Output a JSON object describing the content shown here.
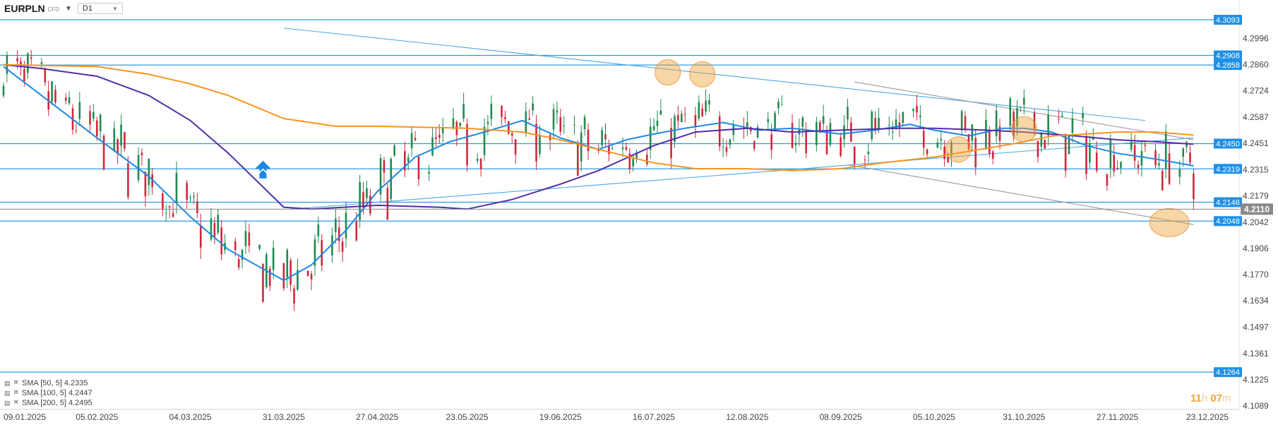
{
  "header": {
    "symbol": "EURPLN",
    "symbol_sub": "CFD",
    "timeframe": "D1"
  },
  "countdown": {
    "hours": "11",
    "hours_unit": "h",
    "minutes": "07",
    "minutes_unit": "m"
  },
  "indicators": [
    {
      "label": "SMA [50, 5] 4.2335",
      "color": "#1e88e5"
    },
    {
      "label": "SMA [100, 5] 4.2447",
      "color": "#512da8"
    },
    {
      "label": "SMA [200, 5] 4.2495",
      "color": "#f7941d"
    }
  ],
  "chart_data": {
    "type": "candlestick",
    "symbol": "EURPLN",
    "timeframe": "D1",
    "ylim": [
      4.1089,
      4.3093
    ],
    "y_ticks": [
      "4.2996",
      "4.2860",
      "4.2724",
      "4.2587",
      "4.2451",
      "4.2315",
      "4.2179",
      "4.2042",
      "4.1906",
      "4.1770",
      "4.1634",
      "4.1497",
      "4.1361",
      "4.1225",
      "4.1089"
    ],
    "x_ticks": [
      "09.01.2025",
      "05.02.2025",
      "04.03.2025",
      "31.03.2025",
      "27.04.2025",
      "23.05.2025",
      "19.06.2025",
      "16.07.2025",
      "12.08.2025",
      "08.09.2025",
      "05.10.2025",
      "31.10.2025",
      "27.11.2025",
      "23.12.2025"
    ],
    "current_price": "4.2110",
    "horizontal_levels": [
      {
        "label": "4.3093",
        "value": 4.3093
      },
      {
        "label": "4.2908",
        "value": 4.2908
      },
      {
        "label": "4.2858",
        "value": 4.2858
      },
      {
        "label": "4.2450",
        "value": 4.245
      },
      {
        "label": "4.2319",
        "value": 4.2319
      },
      {
        "label": "4.2146",
        "value": 4.2146
      },
      {
        "label": "4.2048",
        "value": 4.2048
      },
      {
        "label": "4.1264",
        "value": 4.1264
      }
    ],
    "trendlines": [
      {
        "from": [
          "31.03.2025",
          4.305
        ],
        "to": [
          "05.12.2025",
          4.257
        ],
        "color": "#4aa8e8"
      },
      {
        "from": [
          "02.04.2025",
          4.211
        ],
        "to": [
          "19.12.2025",
          4.248
        ],
        "color": "#4aa8e8"
      },
      {
        "from": [
          "12.09.2025",
          4.277
        ],
        "to": [
          "19.12.2025",
          4.247
        ],
        "color": "#999999"
      },
      {
        "from": [
          "10.09.2025",
          4.234
        ],
        "to": [
          "19.12.2025",
          4.203
        ],
        "color": "#999999"
      }
    ],
    "highlights": [
      {
        "date": "20.07.2025",
        "value": 4.282
      },
      {
        "date": "30.07.2025",
        "value": 4.281
      },
      {
        "date": "12.10.2025",
        "value": 4.242
      },
      {
        "date": "31.10.2025",
        "value": 4.2525
      },
      {
        "date": "12.12.2025",
        "value": 4.204
      }
    ],
    "arrow": {
      "date": "25.03.2025",
      "value": 4.231
    },
    "series": [
      {
        "name": "SMA [50, 5]",
        "color": "#1e88e5",
        "points": [
          [
            "09.01.2025",
            4.285
          ],
          [
            "20.01.2025",
            4.27
          ],
          [
            "05.02.2025",
            4.248
          ],
          [
            "20.02.2025",
            4.228
          ],
          [
            "04.03.2025",
            4.207
          ],
          [
            "15.03.2025",
            4.19
          ],
          [
            "24.03.2025",
            4.181
          ],
          [
            "31.03.2025",
            4.174
          ],
          [
            "08.04.2025",
            4.182
          ],
          [
            "18.04.2025",
            4.2
          ],
          [
            "27.04.2025",
            4.22
          ],
          [
            "08.05.2025",
            4.238
          ],
          [
            "18.05.2025",
            4.246
          ],
          [
            "28.05.2025",
            4.251
          ],
          [
            "08.06.2025",
            4.257
          ],
          [
            "19.06.2025",
            4.248
          ],
          [
            "30.06.2025",
            4.242
          ],
          [
            "08.07.2025",
            4.247
          ],
          [
            "16.07.2025",
            4.25
          ],
          [
            "25.07.2025",
            4.253
          ],
          [
            "05.08.2025",
            4.256
          ],
          [
            "15.08.2025",
            4.252
          ],
          [
            "25.08.2025",
            4.253
          ],
          [
            "08.09.2025",
            4.25
          ],
          [
            "18.09.2025",
            4.252
          ],
          [
            "28.09.2025",
            4.255
          ],
          [
            "05.10.2025",
            4.252
          ],
          [
            "15.10.2025",
            4.249
          ],
          [
            "25.10.2025",
            4.253
          ],
          [
            "31.10.2025",
            4.253
          ],
          [
            "08.11.2025",
            4.251
          ],
          [
            "18.11.2025",
            4.244
          ],
          [
            "27.11.2025",
            4.24
          ],
          [
            "08.12.2025",
            4.237
          ],
          [
            "19.12.2025",
            4.2335
          ]
        ]
      },
      {
        "name": "SMA [100, 5]",
        "color": "#512da8",
        "points": [
          [
            "09.01.2025",
            4.286
          ],
          [
            "20.01.2025",
            4.284
          ],
          [
            "05.02.2025",
            4.28
          ],
          [
            "20.02.2025",
            4.27
          ],
          [
            "04.03.2025",
            4.257
          ],
          [
            "15.03.2025",
            4.24
          ],
          [
            "31.03.2025",
            4.212
          ],
          [
            "08.04.2025",
            4.211
          ],
          [
            "27.04.2025",
            4.213
          ],
          [
            "15.05.2025",
            4.212
          ],
          [
            "23.05.2025",
            4.211
          ],
          [
            "05.06.2025",
            4.216
          ],
          [
            "19.06.2025",
            4.224
          ],
          [
            "30.06.2025",
            4.231
          ],
          [
            "16.07.2025",
            4.244
          ],
          [
            "28.07.2025",
            4.251
          ],
          [
            "12.08.2025",
            4.253
          ],
          [
            "25.08.2025",
            4.251
          ],
          [
            "08.09.2025",
            4.252
          ],
          [
            "25.09.2025",
            4.253
          ],
          [
            "05.10.2025",
            4.253
          ],
          [
            "20.10.2025",
            4.252
          ],
          [
            "31.10.2025",
            4.251
          ],
          [
            "15.11.2025",
            4.249
          ],
          [
            "27.11.2025",
            4.247
          ],
          [
            "08.12.2025",
            4.246
          ],
          [
            "19.12.2025",
            4.2447
          ]
        ]
      },
      {
        "name": "SMA [200, 5]",
        "color": "#f7941d",
        "points": [
          [
            "09.01.2025",
            4.286
          ],
          [
            "05.02.2025",
            4.285
          ],
          [
            "20.02.2025",
            4.281
          ],
          [
            "04.03.2025",
            4.276
          ],
          [
            "15.03.2025",
            4.27
          ],
          [
            "31.03.2025",
            4.258
          ],
          [
            "15.04.2025",
            4.254
          ],
          [
            "27.04.2025",
            4.254
          ],
          [
            "23.05.2025",
            4.253
          ],
          [
            "08.06.2025",
            4.251
          ],
          [
            "19.06.2025",
            4.247
          ],
          [
            "30.06.2025",
            4.242
          ],
          [
            "16.07.2025",
            4.235
          ],
          [
            "28.07.2025",
            4.232
          ],
          [
            "12.08.2025",
            4.232
          ],
          [
            "25.08.2025",
            4.231
          ],
          [
            "08.09.2025",
            4.232
          ],
          [
            "20.09.2025",
            4.235
          ],
          [
            "05.10.2025",
            4.238
          ],
          [
            "15.10.2025",
            4.241
          ],
          [
            "25.10.2025",
            4.244
          ],
          [
            "31.10.2025",
            4.246
          ],
          [
            "08.11.2025",
            4.249
          ],
          [
            "18.11.2025",
            4.25
          ],
          [
            "27.11.2025",
            4.251
          ],
          [
            "08.12.2025",
            4.251
          ],
          [
            "19.12.2025",
            4.2495
          ]
        ]
      }
    ]
  }
}
